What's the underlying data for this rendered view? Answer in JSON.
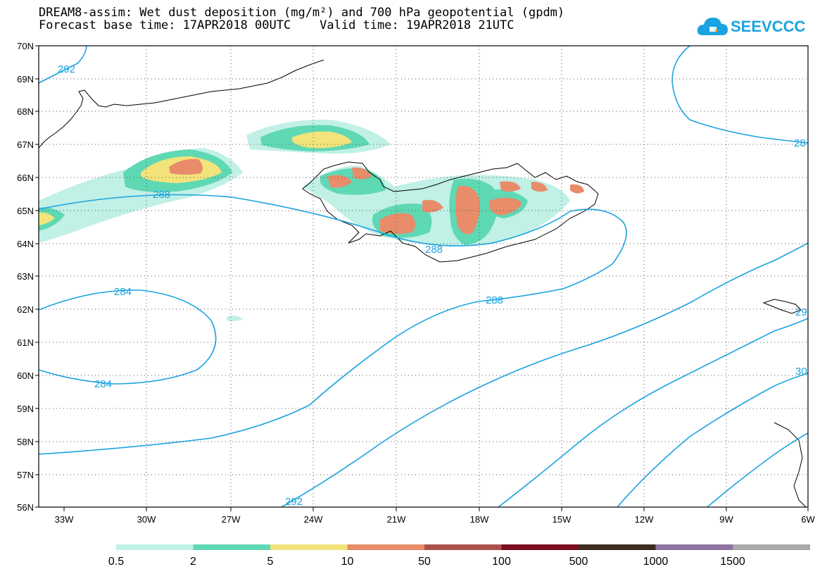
{
  "header": {
    "title_line1": "DREAM8-assim: Wet dust deposition (mg/m²) and 700 hPa geopotential (gpdm)",
    "title_line2": "Forecast base time: 17APR2018 00UTC    Valid time: 19APR2018 21UTC"
  },
  "logo": {
    "text": "SEEVCCC",
    "icon": "cloud-icon",
    "color": "#1aa3e0"
  },
  "map": {
    "lat_labels": [
      "70N",
      "69N",
      "68N",
      "67N",
      "66N",
      "65N",
      "64N",
      "63N",
      "62N",
      "61N",
      "60N",
      "59N",
      "58N",
      "57N",
      "56N"
    ],
    "lon_labels": [
      "33W",
      "30W",
      "27W",
      "24W",
      "21W",
      "18W",
      "15W",
      "12W",
      "9W",
      "6W"
    ],
    "contour_color": "#1aa3e0",
    "contour_labels": [
      "292",
      "288",
      "288",
      "288",
      "284",
      "284",
      "292",
      "28",
      "29",
      "30"
    ]
  },
  "colorbar": {
    "labels": [
      "0.5",
      "2",
      "5",
      "10",
      "50",
      "100",
      "500",
      "1000",
      "1500"
    ],
    "colors": [
      "#c0f0e6",
      "#5fd8b4",
      "#f2e37a",
      "#e88c6a",
      "#a8524a",
      "#7a0e22",
      "#3e2c1e",
      "#8e74a2",
      "#a8a8a8"
    ]
  }
}
